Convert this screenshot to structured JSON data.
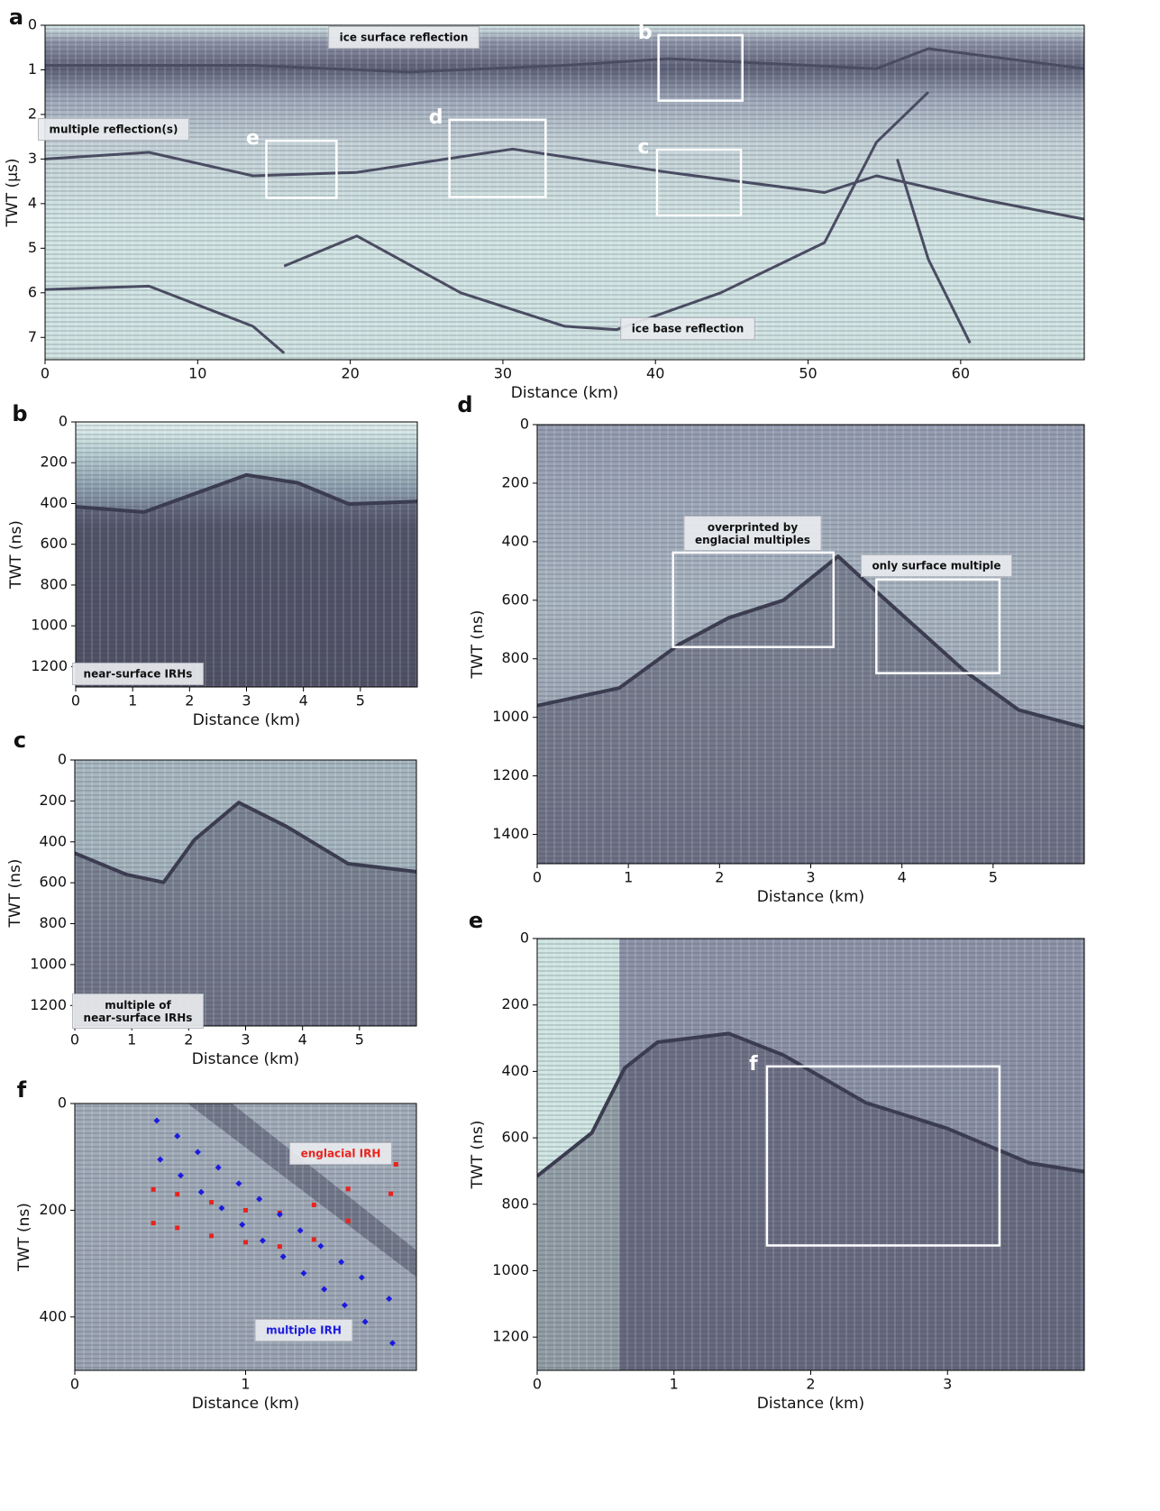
{
  "chart_data": [
    {
      "type": "radargram",
      "panel": "a",
      "xlabel": "Distance (km)",
      "ylabel": "TWT (µs)",
      "xlim": [
        0,
        68.1
      ],
      "ylim": [
        0,
        7.5
      ],
      "y_inverted": true,
      "xticks": [
        0,
        10,
        20,
        30,
        40,
        50,
        60
      ],
      "yticks": [
        0,
        1,
        2,
        3,
        4,
        5,
        6,
        7
      ],
      "annotations": [
        "ice surface reflection",
        "multiple reflection(s)",
        "ice base reflection"
      ],
      "regions": [
        {
          "label": "b",
          "x": [
            40.2,
            45.7
          ],
          "y": [
            0.22,
            1.69
          ]
        },
        {
          "label": "c",
          "x": [
            40.1,
            45.6
          ],
          "y": [
            2.79,
            4.26
          ]
        },
        {
          "label": "d",
          "x": [
            26.5,
            32.8
          ],
          "y": [
            2.12,
            3.85
          ]
        },
        {
          "label": "e",
          "x": [
            14.5,
            19.1
          ],
          "y": [
            2.59,
            3.87
          ]
        }
      ]
    },
    {
      "type": "radargram",
      "panel": "b",
      "xlabel": "Distance (km)",
      "ylabel": "TWT (ns)",
      "xlim": [
        0,
        6
      ],
      "ylim": [
        0,
        1300
      ],
      "y_inverted": true,
      "xticks": [
        0,
        1,
        2,
        3,
        4,
        5
      ],
      "yticks": [
        0,
        200,
        400,
        600,
        800,
        1000,
        1200
      ],
      "annotations": [
        "near-surface IRHs"
      ],
      "regions": []
    },
    {
      "type": "radargram",
      "panel": "c",
      "xlabel": "Distance (km)",
      "ylabel": "TWT (ns)",
      "xlim": [
        0,
        6
      ],
      "ylim": [
        0,
        1300
      ],
      "y_inverted": true,
      "xticks": [
        0,
        1,
        2,
        3,
        4,
        5
      ],
      "yticks": [
        0,
        200,
        400,
        600,
        800,
        1000,
        1200
      ],
      "annotations": [
        "multiple of\nnear-surface IRHs"
      ],
      "regions": []
    },
    {
      "type": "radargram",
      "panel": "d",
      "xlabel": "Distance (km)",
      "ylabel": "TWT (ns)",
      "xlim": [
        0,
        6
      ],
      "ylim": [
        0,
        1500
      ],
      "y_inverted": true,
      "xticks": [
        0,
        1,
        2,
        3,
        4,
        5
      ],
      "yticks": [
        0,
        200,
        400,
        600,
        800,
        1000,
        1200,
        1400
      ],
      "annotations": [
        "overprinted by\nenglacial multiples",
        "only surface multiple"
      ],
      "regions": [
        {
          "x": [
            1.49,
            3.25
          ],
          "y": [
            437,
            760
          ]
        },
        {
          "x": [
            3.72,
            5.07
          ],
          "y": [
            529,
            849
          ]
        }
      ]
    },
    {
      "type": "radargram",
      "panel": "e",
      "xlabel": "Distance (km)",
      "ylabel": "TWT (ns)",
      "xlim": [
        0,
        4
      ],
      "ylim": [
        0,
        1300
      ],
      "y_inverted": true,
      "xticks": [
        0,
        1,
        2,
        3
      ],
      "yticks": [
        0,
        200,
        400,
        600,
        800,
        1000,
        1200
      ],
      "annotations": [],
      "regions": [
        {
          "label": "f",
          "x": [
            1.68,
            3.38
          ],
          "y": [
            385,
            924
          ]
        }
      ]
    },
    {
      "type": "radargram",
      "panel": "f",
      "xlabel": "Distance (km)",
      "ylabel": "TWT (ns)",
      "xlim": [
        0,
        2
      ],
      "ylim": [
        0,
        500
      ],
      "y_inverted": true,
      "xticks": [
        0,
        1
      ],
      "yticks": [
        0,
        200,
        400
      ],
      "annotations": [],
      "regions": [],
      "series": [
        {
          "name": "englacial IRH",
          "color": "#e8231f",
          "segments": [
            {
              "x": [
                0.46,
                0.6,
                0.8,
                1.0,
                1.2,
                1.4,
                1.6,
                1.88
              ],
              "y": [
                161,
                170,
                185,
                200,
                205,
                190,
                160,
                114
              ]
            },
            {
              "x": [
                0.46,
                0.6,
                0.8,
                1.0,
                1.2,
                1.4,
                1.6,
                1.85
              ],
              "y": [
                224,
                233,
                248,
                260,
                268,
                255,
                220,
                169
              ]
            }
          ]
        },
        {
          "name": "multiple IRH",
          "color": "#1a1adf",
          "segments": [
            {
              "x": [
                0.48,
                0.6,
                0.72,
                0.84,
                0.96,
                1.08,
                1.2,
                1.32,
                1.44,
                1.56,
                1.68,
                1.84
              ],
              "y": [
                32,
                61,
                91,
                120,
                150,
                179,
                208,
                238,
                267,
                297,
                326,
                366
              ]
            },
            {
              "x": [
                0.5,
                0.62,
                0.74,
                0.86,
                0.98,
                1.1,
                1.22,
                1.34,
                1.46,
                1.58,
                1.7,
                1.86
              ],
              "y": [
                105,
                135,
                166,
                196,
                227,
                257,
                287,
                318,
                348,
                378,
                409,
                449
              ]
            }
          ]
        }
      ]
    }
  ]
}
